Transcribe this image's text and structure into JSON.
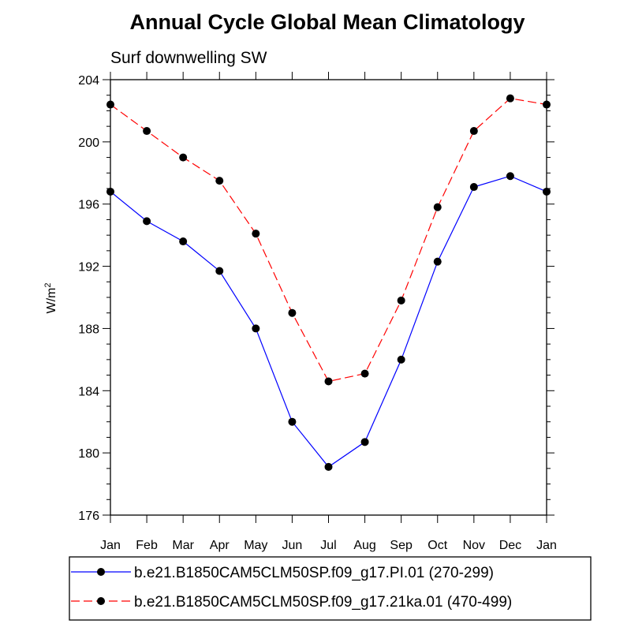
{
  "chart_data": {
    "type": "line",
    "title": "Annual Cycle Global Mean Climatology",
    "subtitle": "Surf downwelling SW",
    "xlabel": "",
    "ylabel": "W/m",
    "ylabel_sup": "2",
    "ylim": [
      176,
      204
    ],
    "yticks": [
      176,
      180,
      184,
      188,
      192,
      196,
      200,
      204
    ],
    "ytick_labels": [
      "176",
      "180",
      "184",
      "188",
      "192",
      "196",
      "200",
      "204"
    ],
    "categories": [
      "Jan",
      "Feb",
      "Mar",
      "Apr",
      "May",
      "Jun",
      "Jul",
      "Aug",
      "Sep",
      "Oct",
      "Nov",
      "Dec",
      "Jan"
    ],
    "grid": false,
    "legend_position": "bottom",
    "series": [
      {
        "name": "b.e21.B1850CAM5CLM50SP.f09_g17.PI.01 (270-299)",
        "color": "#0000ff",
        "dash": "solid",
        "values": [
          196.8,
          194.9,
          193.6,
          191.7,
          188.0,
          182.0,
          179.1,
          180.7,
          186.0,
          192.3,
          197.1,
          197.8,
          196.8
        ]
      },
      {
        "name": "b.e21.B1850CAM5CLM50SP.f09_g17.21ka.01 (470-499)",
        "color": "#ff0000",
        "dash": "dashed",
        "values": [
          202.4,
          200.7,
          199.0,
          197.5,
          194.1,
          189.0,
          184.6,
          185.1,
          189.8,
          195.8,
          200.7,
          202.8,
          202.4
        ]
      }
    ]
  }
}
